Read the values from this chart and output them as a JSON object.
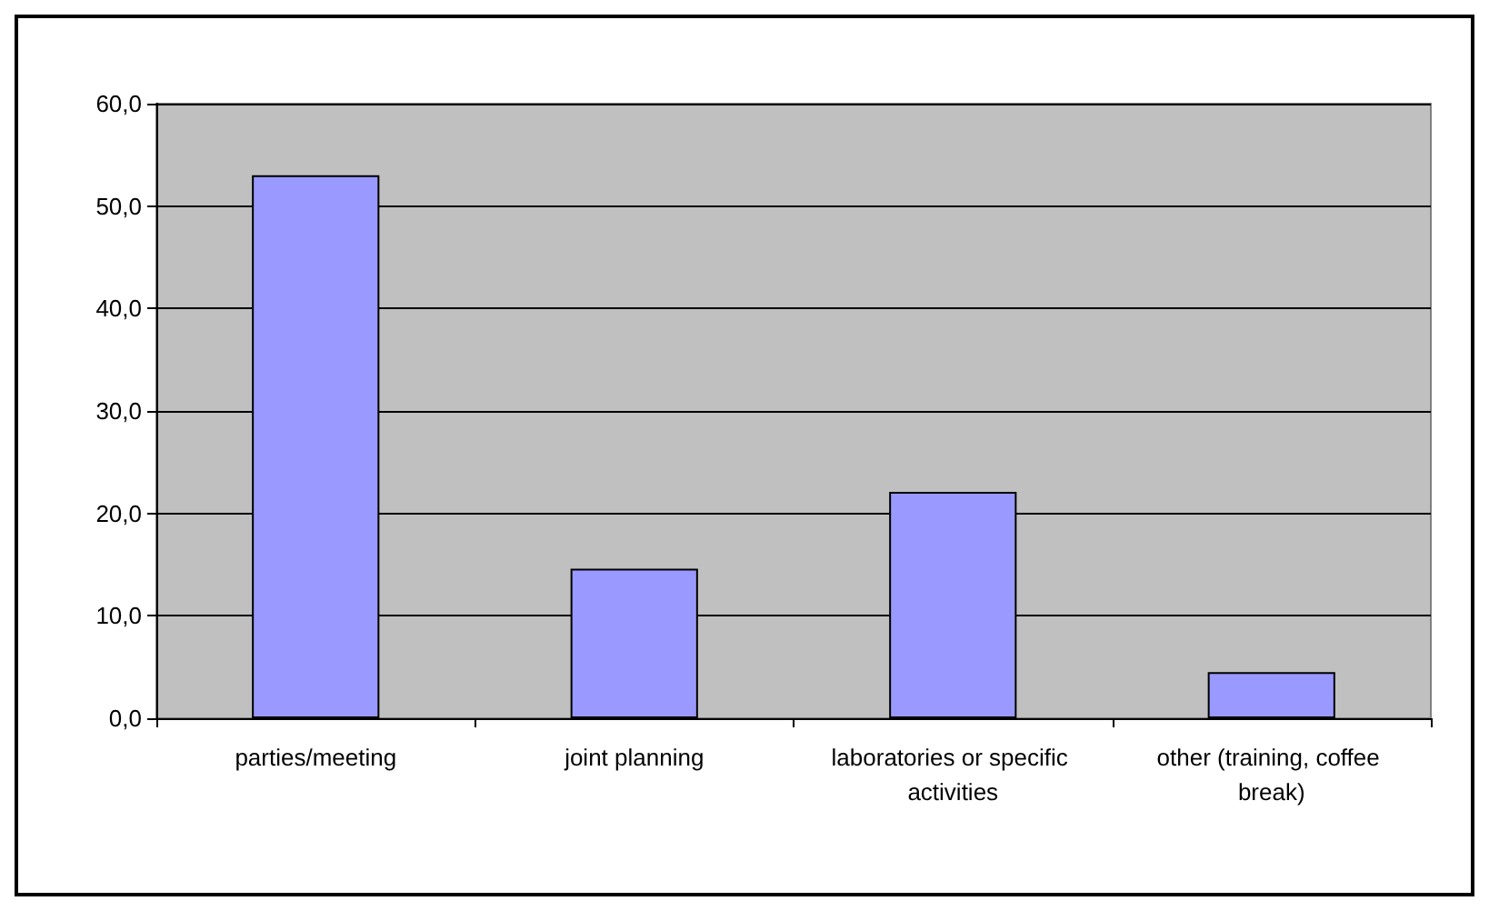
{
  "chart_data": {
    "type": "bar",
    "categories": [
      "parties/meeting",
      "joint planning",
      "laboratories or specific activities",
      "other (training, coffee break)"
    ],
    "values": [
      53.0,
      14.6,
      22.1,
      4.5
    ],
    "color": "#9999ff",
    "ylim": [
      0,
      60
    ],
    "yticks": [
      {
        "value": 0,
        "label": "0,0"
      },
      {
        "value": 10,
        "label": "10,0"
      },
      {
        "value": 20,
        "label": "20,0"
      },
      {
        "value": 30,
        "label": "30,0"
      },
      {
        "value": 40,
        "label": "40,0"
      },
      {
        "value": 50,
        "label": "50,0"
      },
      {
        "value": 60,
        "label": "60,0"
      }
    ],
    "grid": "y"
  }
}
